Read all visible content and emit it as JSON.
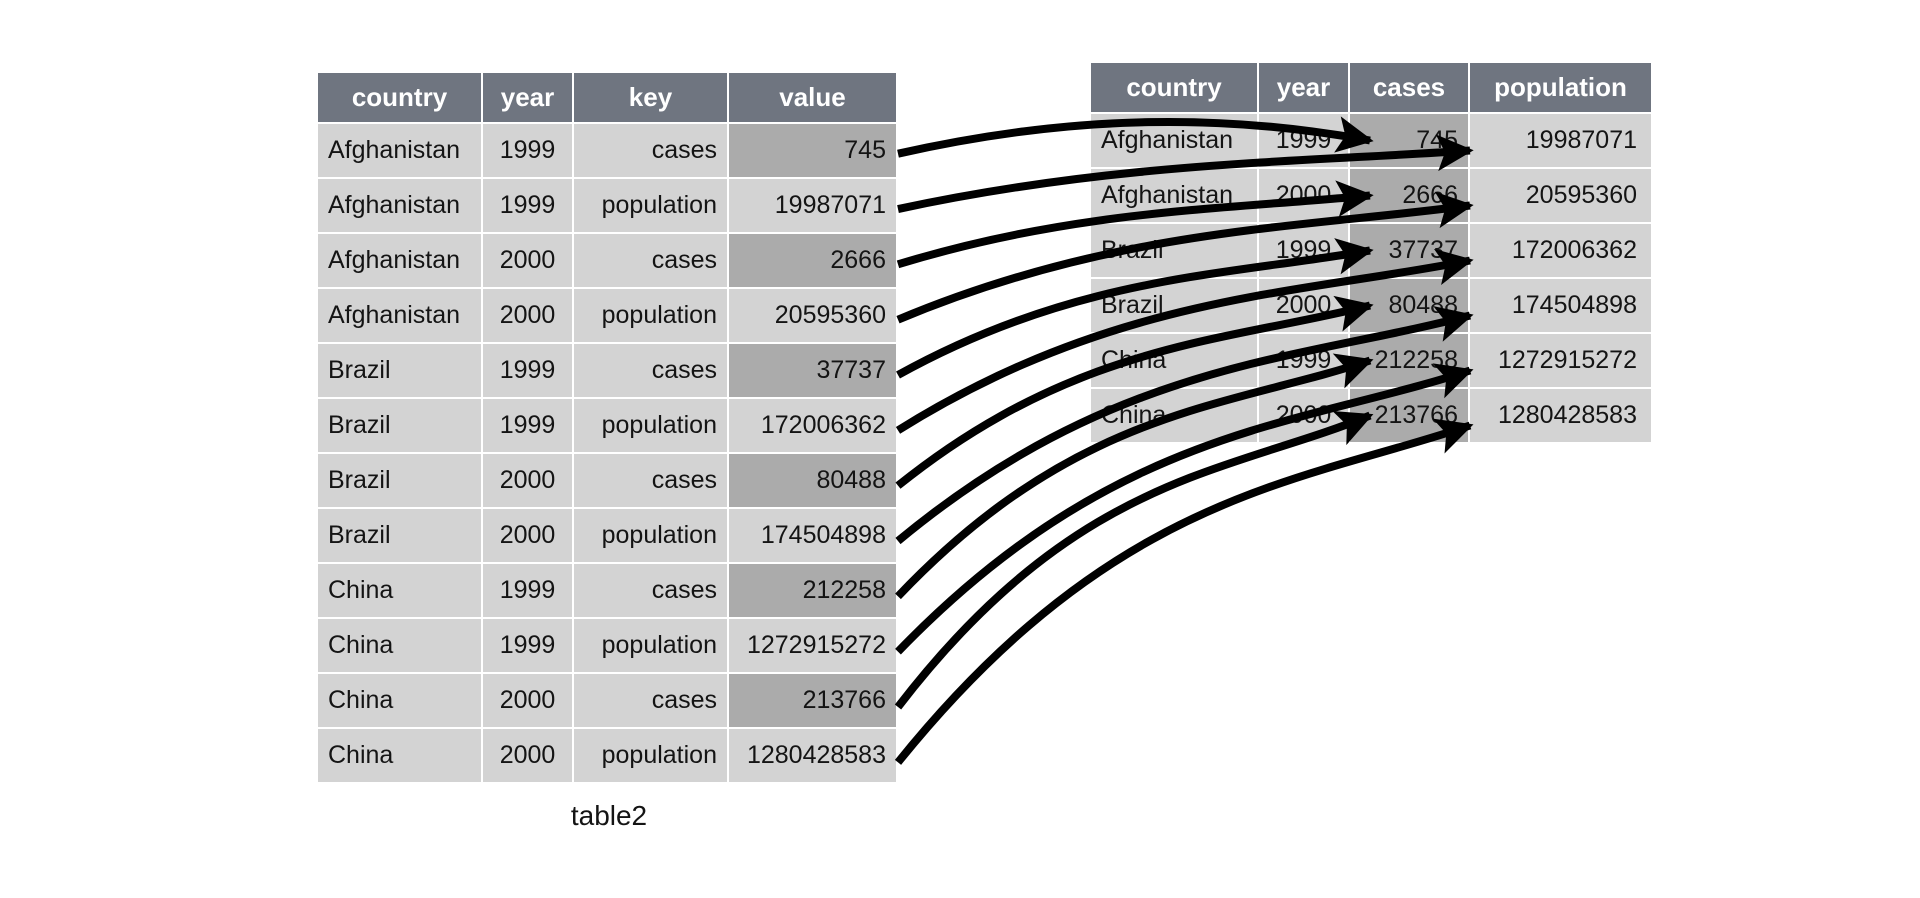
{
  "page": {
    "background": "#ffffff"
  },
  "colors": {
    "header_bg": "#6f7580",
    "header_text": "#ffffff",
    "cell_bg": "#d3d3d3",
    "highlight_bg": "#ababab",
    "text": "#141414",
    "arrow": "#000000"
  },
  "left_table": {
    "caption": "table2",
    "columns": [
      "country",
      "year",
      "key",
      "value"
    ],
    "rows": [
      [
        "Afghanistan",
        "1999",
        "cases",
        "745"
      ],
      [
        "Afghanistan",
        "1999",
        "population",
        "19987071"
      ],
      [
        "Afghanistan",
        "2000",
        "cases",
        "2666"
      ],
      [
        "Afghanistan",
        "2000",
        "population",
        "20595360"
      ],
      [
        "Brazil",
        "1999",
        "cases",
        "37737"
      ],
      [
        "Brazil",
        "1999",
        "population",
        "172006362"
      ],
      [
        "Brazil",
        "2000",
        "cases",
        "80488"
      ],
      [
        "Brazil",
        "2000",
        "population",
        "174504898"
      ],
      [
        "China",
        "1999",
        "cases",
        "212258"
      ],
      [
        "China",
        "1999",
        "population",
        "1272915272"
      ],
      [
        "China",
        "2000",
        "cases",
        "213766"
      ],
      [
        "China",
        "2000",
        "population",
        "1280428583"
      ]
    ]
  },
  "right_table": {
    "columns": [
      "country",
      "year",
      "cases",
      "population"
    ],
    "rows": [
      [
        "Afghanistan",
        "1999",
        "745",
        "19987071"
      ],
      [
        "Afghanistan",
        "2000",
        "2666",
        "20595360"
      ],
      [
        "Brazil",
        "1999",
        "37737",
        "172006362"
      ],
      [
        "Brazil",
        "2000",
        "80488",
        "174504898"
      ],
      [
        "China",
        "1999",
        "212258",
        "1272915272"
      ],
      [
        "China",
        "2000",
        "213766",
        "1280428583"
      ]
    ]
  },
  "arrows": [
    {
      "from_left_row": 0,
      "to_right_row": 0,
      "to_column": "cases"
    },
    {
      "from_left_row": 1,
      "to_right_row": 0,
      "to_column": "population"
    },
    {
      "from_left_row": 2,
      "to_right_row": 1,
      "to_column": "cases"
    },
    {
      "from_left_row": 3,
      "to_right_row": 1,
      "to_column": "population"
    },
    {
      "from_left_row": 4,
      "to_right_row": 2,
      "to_column": "cases"
    },
    {
      "from_left_row": 5,
      "to_right_row": 2,
      "to_column": "population"
    },
    {
      "from_left_row": 6,
      "to_right_row": 3,
      "to_column": "cases"
    },
    {
      "from_left_row": 7,
      "to_right_row": 3,
      "to_column": "population"
    },
    {
      "from_left_row": 8,
      "to_right_row": 4,
      "to_column": "cases"
    },
    {
      "from_left_row": 9,
      "to_right_row": 4,
      "to_column": "population"
    },
    {
      "from_left_row": 10,
      "to_right_row": 5,
      "to_column": "cases"
    },
    {
      "from_left_row": 11,
      "to_right_row": 5,
      "to_column": "population"
    }
  ]
}
